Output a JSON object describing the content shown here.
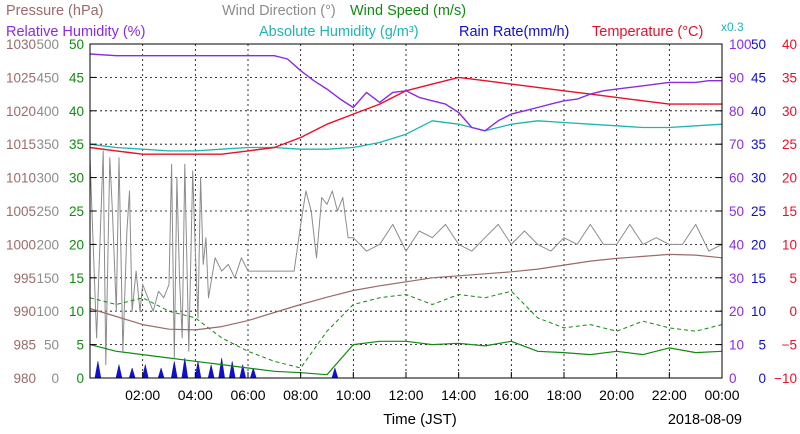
{
  "chart_data": {
    "type": "line",
    "legend": [
      {
        "key": "pressure",
        "text": "Pressure (hPa)",
        "color": "#9b6a6a"
      },
      {
        "key": "wind_dir",
        "text": "Wind Direction (°)",
        "color": "#8c8c8c"
      },
      {
        "key": "wind_speed",
        "text": "Wind Speed (m/s)",
        "color": "#128a12"
      },
      {
        "key": "rel_hum",
        "text": "Relative Humidity (%)",
        "color": "#8a2be2"
      },
      {
        "key": "abs_hum",
        "text": "Absolute Humidity (g/m³)",
        "color": "#1fb5b0"
      },
      {
        "key": "abs_hum_scale",
        "text": "x0.3",
        "color": "#1fb5b0"
      },
      {
        "key": "rain",
        "text": "Rain Rate(mm/h)",
        "color": "#1010c8"
      },
      {
        "key": "temp",
        "text": "Temperature (°C)",
        "color": "#e8102a"
      }
    ],
    "xlabel": "Time (JST)",
    "date": "2018-08-09",
    "xlim": [
      0,
      24
    ],
    "x_ticks": [
      "02:00",
      "04:00",
      "06:00",
      "08:00",
      "10:00",
      "12:00",
      "14:00",
      "16:00",
      "18:00",
      "20:00",
      "22:00",
      "00:00"
    ],
    "axes": {
      "pressure": {
        "ticks": [
          "1030",
          "1025",
          "1020",
          "1015",
          "1010",
          "1005",
          "1000",
          "995",
          "990",
          "985",
          "980"
        ],
        "range": [
          980,
          1030
        ],
        "color": "#9b6a6a"
      },
      "wind_dir": {
        "ticks": [
          "500",
          "450",
          "400",
          "350",
          "300",
          "250",
          "200",
          "150",
          "100",
          "50",
          "0"
        ],
        "range": [
          0,
          500
        ],
        "color": "#8c8c8c"
      },
      "wind_speed": {
        "ticks": [
          "50",
          "45",
          "40",
          "35",
          "30",
          "25",
          "20",
          "15",
          "10",
          "5",
          "0"
        ],
        "range": [
          0,
          50
        ],
        "color": "#128a12"
      },
      "humidity": {
        "ticks": [
          "100",
          "90",
          "80",
          "70",
          "60",
          "50",
          "40",
          "30",
          "20",
          "10",
          "0"
        ],
        "range": [
          0,
          100
        ],
        "color": "#8a2be2"
      },
      "rain": {
        "ticks": [
          "50",
          "45",
          "40",
          "35",
          "30",
          "25",
          "20",
          "15",
          "10",
          "5",
          "0"
        ],
        "range": [
          0,
          50
        ],
        "color": "#1010c8"
      },
      "temperature": {
        "ticks": [
          "40",
          "35",
          "30",
          "25",
          "20",
          "15",
          "10",
          "5",
          "0",
          "−5",
          "−10"
        ],
        "range": [
          -10,
          40
        ],
        "color": "#e8102a"
      }
    },
    "series": [
      {
        "name": "Pressure (hPa)",
        "key": "pressure",
        "axis": "pressure",
        "x": [
          0,
          1,
          2,
          3,
          4,
          5,
          6,
          7,
          8,
          9,
          10,
          11,
          12,
          13,
          14,
          15,
          16,
          17,
          18,
          19,
          20,
          21,
          22,
          23,
          24
        ],
        "y": [
          990.4,
          989.2,
          988.0,
          987.3,
          987.2,
          987.7,
          988.6,
          989.8,
          991.0,
          992.1,
          993.1,
          993.8,
          994.4,
          995.0,
          995.3,
          995.6,
          995.9,
          996.3,
          996.9,
          997.5,
          997.9,
          998.2,
          998.5,
          998.4,
          998.0
        ]
      },
      {
        "name": "Wind Direction (°)",
        "key": "wind_dir",
        "axis": "wind_dir",
        "x": [
          0.0,
          0.25,
          0.5,
          0.6,
          0.75,
          0.85,
          1.0,
          1.1,
          1.25,
          1.4,
          1.5,
          1.6,
          1.75,
          1.9,
          2.0,
          2.2,
          2.4,
          2.6,
          2.8,
          3.0,
          3.1,
          3.2,
          3.3,
          3.4,
          3.5,
          3.6,
          3.75,
          3.9,
          4.0,
          4.1,
          4.2,
          4.3,
          4.4,
          4.5,
          4.75,
          5.0,
          5.25,
          5.5,
          5.75,
          6.0,
          6.5,
          7.0,
          7.5,
          7.75,
          8.0,
          8.2,
          8.4,
          8.6,
          8.8,
          9.0,
          9.2,
          9.4,
          9.6,
          9.8,
          10.0,
          10.5,
          11.0,
          11.5,
          12.0,
          12.5,
          13.0,
          13.5,
          14.0,
          14.5,
          15.0,
          15.5,
          16.0,
          16.5,
          17.0,
          17.5,
          18.0,
          18.5,
          19.0,
          19.5,
          20.0,
          20.5,
          21.0,
          21.5,
          22.0,
          22.5,
          23.0,
          23.5,
          24.0
        ],
        "y": [
          330,
          60,
          340,
          20,
          330,
          250,
          100,
          330,
          40,
          220,
          280,
          100,
          160,
          100,
          140,
          120,
          100,
          130,
          120,
          140,
          320,
          30,
          300,
          150,
          60,
          320,
          40,
          310,
          190,
          90,
          300,
          170,
          210,
          120,
          180,
          160,
          170,
          150,
          180,
          160,
          160,
          160,
          160,
          160,
          230,
          280,
          250,
          180,
          270,
          260,
          280,
          250,
          270,
          210,
          210,
          190,
          200,
          230,
          190,
          220,
          210,
          230,
          200,
          190,
          210,
          230,
          200,
          220,
          200,
          190,
          210,
          200,
          230,
          200,
          200,
          230,
          200,
          210,
          200,
          200,
          230,
          190,
          200
        ]
      },
      {
        "name": "Wind Speed (m/s)",
        "key": "wind_speed_mean",
        "axis": "wind_speed",
        "x": [
          0,
          1,
          2,
          3,
          4,
          5,
          6,
          7,
          8,
          9,
          10,
          11,
          12,
          13,
          14,
          15,
          16,
          17,
          18,
          19,
          20,
          21,
          22,
          23,
          24
        ],
        "y": [
          5.0,
          4.0,
          3.5,
          3.0,
          2.5,
          2.0,
          1.5,
          1.0,
          0.8,
          0.5,
          5.0,
          5.5,
          5.5,
          5.0,
          5.2,
          4.8,
          5.5,
          4.0,
          3.8,
          3.5,
          4.0,
          3.5,
          4.5,
          3.8,
          4.0
        ]
      },
      {
        "name": "Wind Speed (m/s)",
        "key": "wind_speed_gust",
        "axis": "wind_speed",
        "x": [
          0,
          1,
          2,
          3,
          4,
          5,
          6,
          7,
          8,
          9,
          10,
          11,
          12,
          13,
          14,
          15,
          16,
          17,
          18,
          19,
          20,
          21,
          22,
          23,
          24
        ],
        "y": [
          12.0,
          11.0,
          12.0,
          10.0,
          9.0,
          6.0,
          4.0,
          2.5,
          1.5,
          7.0,
          11.0,
          12.0,
          12.5,
          11.0,
          12.5,
          12.0,
          13.0,
          9.0,
          7.5,
          8.0,
          7.0,
          8.5,
          7.5,
          7.0,
          8.0
        ]
      },
      {
        "name": "Relative Humidity (%)",
        "key": "rel_hum",
        "axis": "humidity",
        "x": [
          0,
          1,
          2,
          3,
          4,
          5,
          6,
          6.5,
          7,
          7.5,
          8,
          8.5,
          9,
          9.5,
          10,
          10.5,
          11,
          11.5,
          12,
          12.5,
          13,
          13.5,
          14,
          14.5,
          15,
          15.5,
          16,
          16.5,
          17,
          17.5,
          18,
          18.5,
          19,
          19.5,
          20,
          20.5,
          21,
          21.5,
          22,
          22.5,
          23,
          23.5,
          24
        ],
        "y": [
          97.0,
          96.5,
          96.5,
          96.5,
          96.5,
          96.5,
          96.5,
          96.5,
          96.5,
          95.5,
          92.0,
          89.0,
          86.5,
          83.5,
          81.0,
          85.5,
          82.5,
          85.5,
          86.0,
          84.0,
          83.0,
          82.0,
          79.5,
          75.0,
          74.0,
          77.0,
          79.0,
          80.0,
          81.0,
          82.0,
          83.0,
          83.5,
          85.0,
          86.0,
          86.5,
          87.0,
          87.5,
          88.0,
          88.5,
          88.5,
          88.5,
          89.0,
          89.0
        ]
      },
      {
        "name": "Absolute Humidity (g/m³)",
        "key": "abs_hum",
        "axis": "humidity",
        "x": [
          0,
          1,
          2,
          3,
          4,
          5,
          6,
          7,
          8,
          9,
          10,
          11,
          12,
          13,
          14,
          15,
          16,
          17,
          18,
          19,
          20,
          21,
          22,
          23,
          24
        ],
        "y": [
          70.0,
          69.0,
          68.5,
          68.0,
          68.0,
          68.5,
          69.0,
          69.0,
          68.5,
          68.5,
          69.0,
          70.5,
          73.0,
          77.0,
          76.0,
          74.0,
          76.0,
          77.0,
          76.5,
          76.0,
          75.5,
          75.0,
          75.0,
          75.5,
          76.0
        ]
      },
      {
        "name": "Temperature (°C)",
        "key": "temp",
        "axis": "temperature",
        "x": [
          0,
          1,
          2,
          3,
          4,
          5,
          6,
          7,
          8,
          9,
          10,
          11,
          12,
          13,
          14,
          15,
          16,
          17,
          18,
          19,
          20,
          21,
          22,
          23,
          24
        ],
        "y": [
          24.5,
          24.0,
          23.5,
          23.5,
          23.5,
          23.5,
          24.0,
          24.5,
          26.0,
          28.0,
          29.5,
          31.0,
          33.0,
          34.0,
          35.0,
          34.5,
          34.0,
          33.5,
          33.0,
          32.5,
          32.0,
          31.5,
          31.0,
          31.0,
          31.0
        ]
      },
      {
        "name": "Rain Rate(mm/h)",
        "key": "rain",
        "axis": "rain",
        "x": [
          0.3,
          1.1,
          1.6,
          2.1,
          2.7,
          3.2,
          3.6,
          4.1,
          4.6,
          5.0,
          5.4,
          5.8,
          6.2,
          9.3
        ],
        "y": [
          2.5,
          2.0,
          1.5,
          2.0,
          1.5,
          2.5,
          3.0,
          2.5,
          2.0,
          3.0,
          2.5,
          2.0,
          1.5,
          1.5
        ]
      }
    ],
    "grid": true
  }
}
